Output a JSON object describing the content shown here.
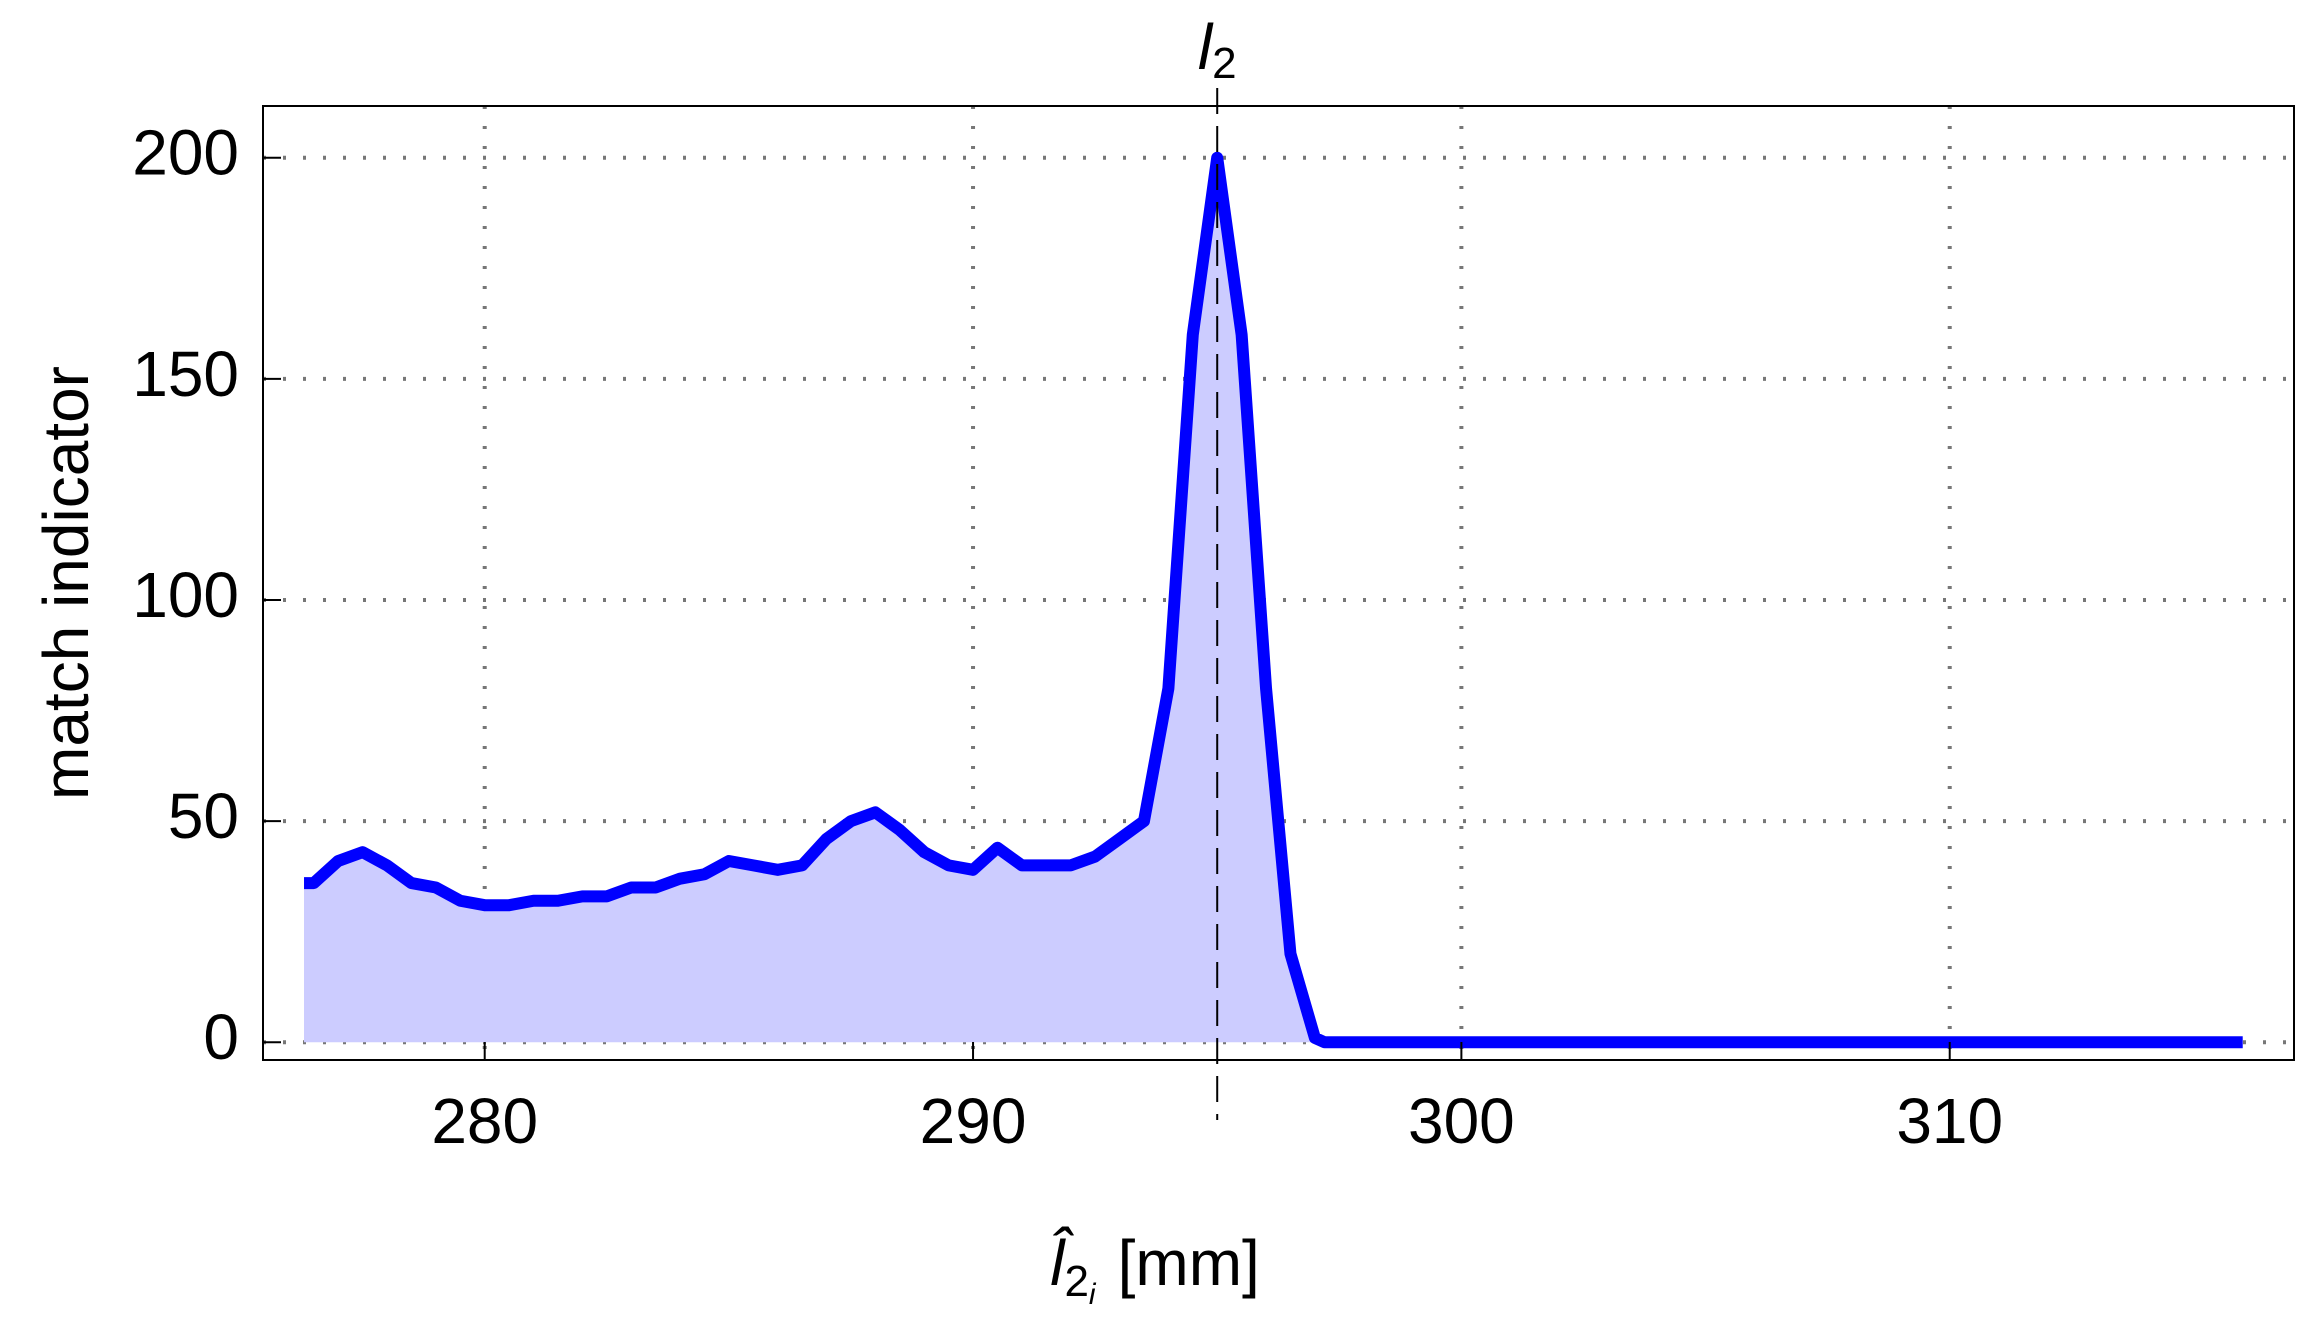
{
  "chart_data": {
    "type": "area",
    "x_label": {
      "symbol": "l̂",
      "sub": "2",
      "subsub": "i",
      "unit": "[mm]"
    },
    "y_label": "match indicator",
    "annotation": {
      "text": "l",
      "sub": "2",
      "x": 295
    },
    "x": [
      276.3,
      276.5,
      277,
      277.5,
      278,
      278.5,
      279,
      279.5,
      280,
      280.5,
      281,
      281.5,
      282,
      282.5,
      283,
      283.5,
      284,
      284.5,
      285,
      285.5,
      286,
      286.5,
      287,
      287.5,
      288,
      288.5,
      289,
      289.5,
      290,
      290.5,
      291,
      291.5,
      292,
      292.5,
      293,
      293.5,
      294,
      294.5,
      295,
      295.5,
      296,
      296.5,
      297,
      297.2,
      316
    ],
    "series": [
      {
        "color": "#0000ff",
        "fill": "#ccccff",
        "values": [
          36,
          36,
          41,
          43,
          40,
          36,
          35,
          32,
          31,
          31,
          32,
          32,
          33,
          33,
          35,
          35,
          37,
          38,
          41,
          40,
          39,
          40,
          46,
          50,
          52,
          48,
          43,
          40,
          39,
          44,
          40,
          40,
          40,
          42,
          46,
          50,
          80,
          160,
          200,
          160,
          80,
          20,
          1,
          0,
          0
        ]
      }
    ],
    "xlim": [
      275.46,
      317.05
    ],
    "xticks": [
      280,
      290,
      300,
      310
    ],
    "ylim": [
      -4,
      211.7
    ],
    "yticks": [
      0,
      50,
      100,
      150,
      200
    ],
    "grid": true
  }
}
